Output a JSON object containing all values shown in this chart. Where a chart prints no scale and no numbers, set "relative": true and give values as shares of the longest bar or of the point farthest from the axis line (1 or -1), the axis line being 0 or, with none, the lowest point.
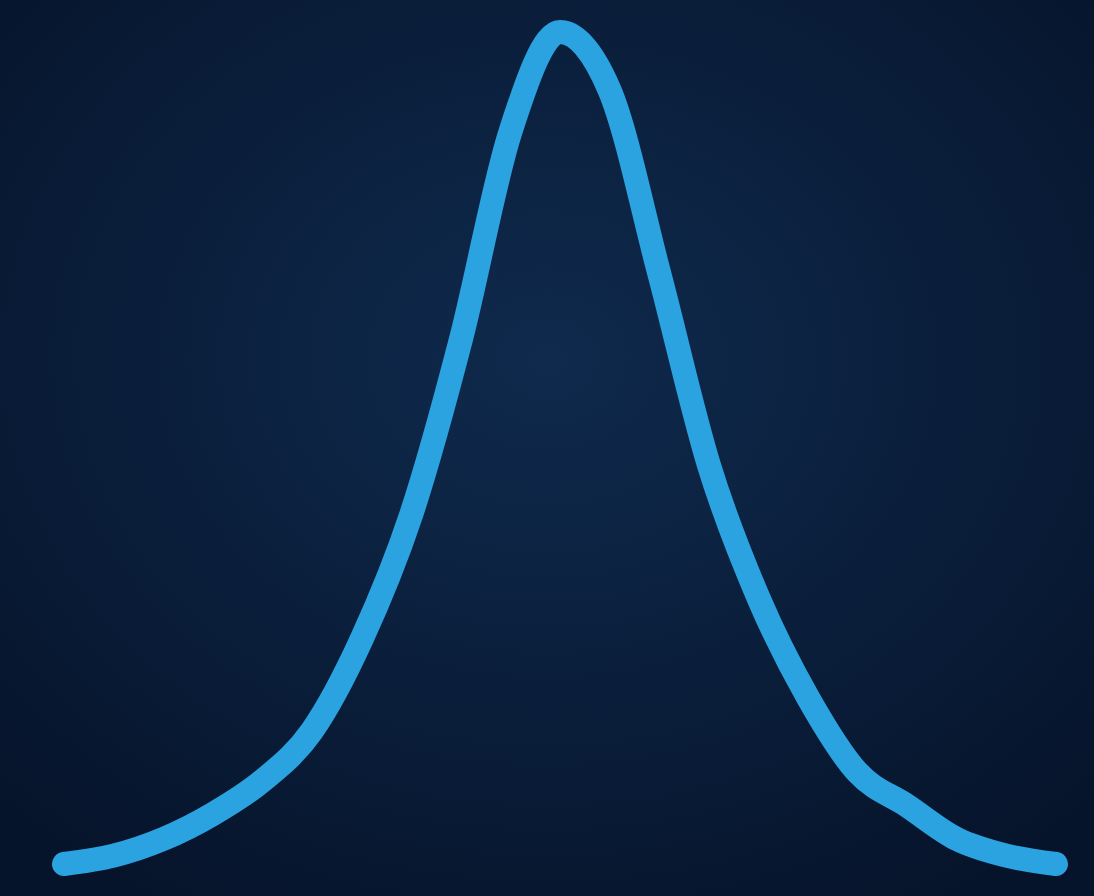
{
  "chart_data": {
    "type": "line",
    "relative": true,
    "categories": [
      null,
      null,
      null,
      null,
      null,
      null,
      null,
      null,
      null,
      null,
      null,
      null,
      null,
      null,
      null,
      null,
      null,
      null,
      null,
      null,
      null
    ],
    "series": [
      {
        "color": "#2aa3e0",
        "values": [
          0,
          0.01,
          0.03,
          0.06,
          0.1,
          0.16,
          0.27,
          0.42,
          0.63,
          0.88,
          1,
          0.93,
          0.71,
          0.48,
          0.32,
          0.2,
          0.11,
          0.07,
          0.03,
          0.01,
          0
        ]
      }
    ]
  }
}
